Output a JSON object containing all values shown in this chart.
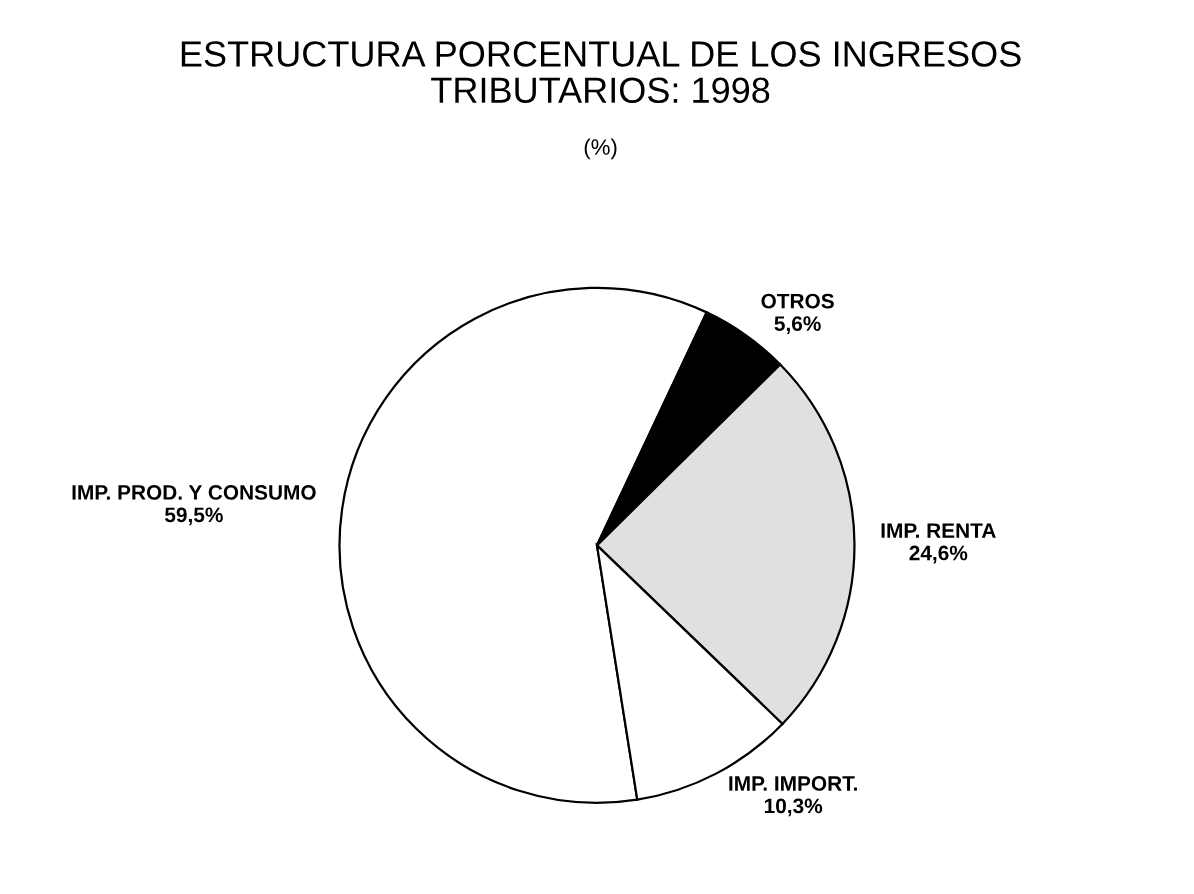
{
  "chart_data": {
    "type": "pie",
    "title": "ESTRUCTURA PORCENTUAL DE LOS INGRESOS\nTRIBUTARIOS: 1998",
    "subtitle": "(%)",
    "categories": [
      "IMP. PROD. Y CONSUMO",
      "OTROS",
      "IMP. RENTA",
      "IMP. IMPORT."
    ],
    "values": [
      59.5,
      5.6,
      24.6,
      10.3
    ],
    "value_labels": [
      "59,5%",
      "5,6%",
      "24,6%",
      "10,3%"
    ],
    "colors": [
      "#ffffff",
      "#000000",
      "#e0e0e0",
      "#ffffff"
    ]
  }
}
